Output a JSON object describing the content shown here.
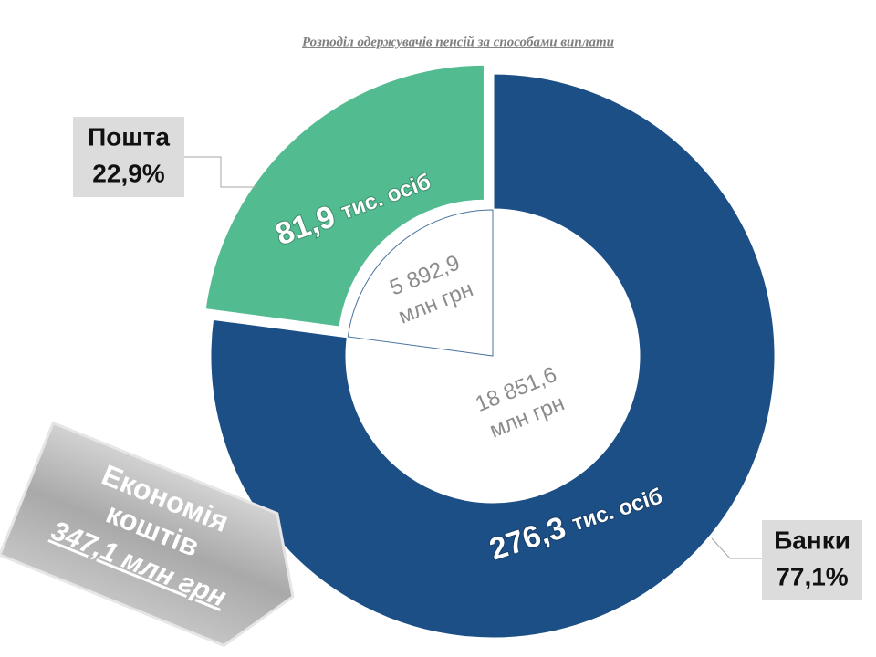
{
  "chart_data": {
    "type": "donut",
    "title": "Розподіл одержувачів пенсій за способами  виплати",
    "categories": [
      "Банки",
      "Пошта"
    ],
    "values": [
      77.1,
      22.9
    ],
    "value_labels": [
      "77,1%",
      "22,9%"
    ],
    "colors": [
      "#1b4f86",
      "#52bb8f"
    ],
    "explode": [
      false,
      true
    ],
    "segment_labels": [
      [
        "276,3",
        "тис. осіб"
      ],
      [
        "81,9",
        "тис. осіб"
      ]
    ],
    "amount_labels": [
      [
        "18 851,6",
        "млн грн"
      ],
      [
        "5 892,9",
        "млн грн"
      ]
    ],
    "annotation": {
      "lines": [
        "Економія",
        "коштів"
      ],
      "amount": "347,1 млн грн"
    }
  }
}
